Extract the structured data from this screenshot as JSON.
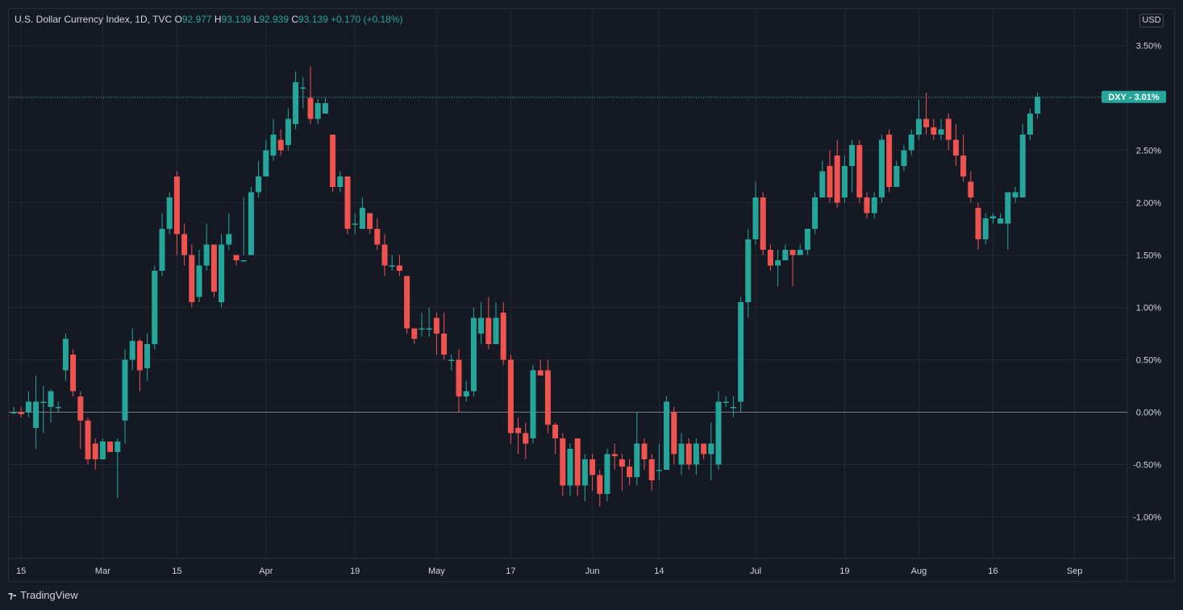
{
  "legend": {
    "title": "U.S. Dollar Currency Index, 1D, TVC",
    "o_label": "O",
    "o_value": "92.977",
    "h_label": "H",
    "h_value": "93.139",
    "l_label": "L",
    "l_value": "92.939",
    "c_label": "C",
    "c_value": "93.139",
    "change": "+0.170 (+0.18%)"
  },
  "currency_button": "USD",
  "price_tag": {
    "symbol": "DXY",
    "value": "3.01%"
  },
  "brand": "TradingView",
  "colors": {
    "up": "#26a69a",
    "down": "#ef5350",
    "grid": "#232733",
    "text": "#d1d4dc"
  },
  "chart_data": {
    "type": "candlestick",
    "ylim": [
      -1.35,
      3.55
    ],
    "y_ticks": [
      3.5,
      3.0,
      2.5,
      2.0,
      1.5,
      1.0,
      0.5,
      0.0,
      -0.5,
      -1.0
    ],
    "y_tick_labels": [
      "3.50%",
      "3.00%",
      "2.50%",
      "2.00%",
      "1.50%",
      "1.00%",
      "0.50%",
      "0.00%",
      "-0.50%",
      "-1.00%"
    ],
    "x_tick_labels": [
      {
        "label": "15",
        "index": 1
      },
      {
        "label": "Mar",
        "index": 12
      },
      {
        "label": "15",
        "index": 22
      },
      {
        "label": "Apr",
        "index": 34
      },
      {
        "label": "19",
        "index": 46
      },
      {
        "label": "May",
        "index": 57
      },
      {
        "label": "17",
        "index": 67
      },
      {
        "label": "Jun",
        "index": 78
      },
      {
        "label": "14",
        "index": 87
      },
      {
        "label": "Jul",
        "index": 100
      },
      {
        "label": "19",
        "index": 112
      },
      {
        "label": "Aug",
        "index": 122
      },
      {
        "label": "16",
        "index": 132
      },
      {
        "label": "Sep",
        "index": 143
      }
    ],
    "last_value": 3.01,
    "baseline": 0.0,
    "candles": [
      [
        0.0,
        0.0,
        0.05,
        -0.02
      ],
      [
        0.0,
        -0.02,
        0.05,
        -0.05
      ],
      [
        0.0,
        0.1,
        0.2,
        -0.05
      ],
      [
        -0.15,
        0.1,
        0.35,
        -0.35
      ],
      [
        0.1,
        0.1,
        0.25,
        -0.2
      ],
      [
        0.05,
        0.2,
        0.22,
        -0.1
      ],
      [
        0.05,
        0.05,
        0.1,
        0.0
      ],
      [
        0.4,
        0.7,
        0.75,
        0.3
      ],
      [
        0.55,
        0.2,
        0.6,
        0.15
      ],
      [
        0.15,
        -0.08,
        0.2,
        -0.35
      ],
      [
        -0.08,
        -0.45,
        -0.05,
        -0.5
      ],
      [
        -0.3,
        -0.45,
        -0.25,
        -0.55
      ],
      [
        -0.45,
        -0.28,
        -0.25,
        -0.45
      ],
      [
        -0.28,
        -0.38,
        -0.3,
        -0.35
      ],
      [
        -0.38,
        -0.28,
        -0.25,
        -0.82
      ],
      [
        -0.08,
        0.5,
        0.6,
        -0.3
      ],
      [
        0.5,
        0.68,
        0.8,
        0.4
      ],
      [
        0.68,
        0.4,
        0.7,
        0.2
      ],
      [
        0.42,
        0.65,
        0.75,
        0.3
      ],
      [
        0.65,
        1.35,
        1.4,
        0.6
      ],
      [
        1.35,
        1.75,
        1.9,
        1.3
      ],
      [
        1.75,
        2.05,
        2.1,
        1.7
      ],
      [
        2.25,
        1.7,
        2.3,
        1.5
      ],
      [
        1.7,
        1.5,
        1.8,
        1.4
      ],
      [
        1.5,
        1.05,
        1.6,
        1.0
      ],
      [
        1.1,
        1.4,
        1.55,
        1.05
      ],
      [
        1.4,
        1.6,
        1.8,
        1.35
      ],
      [
        1.6,
        1.15,
        1.6,
        1.1
      ],
      [
        1.05,
        1.6,
        1.7,
        1.0
      ],
      [
        1.6,
        1.7,
        1.9,
        1.55
      ],
      [
        1.5,
        1.45,
        1.5,
        1.4
      ],
      [
        1.45,
        1.45,
        2.05,
        1.5
      ],
      [
        1.5,
        2.1,
        2.15,
        1.5
      ],
      [
        2.1,
        2.25,
        2.4,
        2.05
      ],
      [
        2.25,
        2.5,
        2.6,
        2.25
      ],
      [
        2.45,
        2.65,
        2.8,
        2.4
      ],
      [
        2.6,
        2.5,
        2.7,
        2.45
      ],
      [
        2.55,
        2.8,
        2.9,
        2.5
      ],
      [
        2.75,
        3.15,
        3.25,
        2.7
      ],
      [
        3.1,
        3.1,
        3.2,
        2.9
      ],
      [
        3.0,
        2.8,
        3.3,
        2.75
      ],
      [
        2.8,
        2.95,
        2.99,
        2.75
      ],
      [
        2.85,
        2.95,
        3.0,
        2.85
      ],
      [
        2.65,
        2.15,
        2.65,
        2.1
      ],
      [
        2.15,
        2.25,
        2.3,
        2.1
      ],
      [
        2.25,
        1.75,
        2.25,
        1.7
      ],
      [
        1.8,
        1.8,
        1.9,
        1.7
      ],
      [
        1.75,
        1.95,
        2.05,
        1.8
      ],
      [
        1.9,
        1.75,
        1.9,
        1.7
      ],
      [
        1.75,
        1.6,
        1.85,
        1.55
      ],
      [
        1.6,
        1.4,
        1.7,
        1.3
      ],
      [
        1.4,
        1.4,
        1.5,
        1.35
      ],
      [
        1.4,
        1.35,
        1.5,
        1.3
      ],
      [
        1.3,
        0.8,
        1.3,
        0.75
      ],
      [
        0.8,
        0.7,
        0.8,
        0.65
      ],
      [
        0.8,
        0.8,
        0.95,
        0.72
      ],
      [
        0.8,
        0.8,
        1.0,
        0.72
      ],
      [
        0.9,
        0.75,
        0.95,
        0.55
      ],
      [
        0.75,
        0.55,
        0.95,
        0.5
      ],
      [
        0.5,
        0.5,
        0.55,
        0.4
      ],
      [
        0.5,
        0.15,
        0.6,
        0.0
      ],
      [
        0.15,
        0.2,
        0.3,
        0.1
      ],
      [
        0.2,
        0.9,
        1.0,
        0.15
      ],
      [
        0.75,
        0.9,
        1.05,
        0.65
      ],
      [
        0.9,
        0.65,
        1.1,
        0.6
      ],
      [
        0.65,
        0.9,
        1.05,
        0.65
      ],
      [
        0.95,
        0.5,
        1.05,
        0.45
      ],
      [
        0.5,
        -0.2,
        0.55,
        -0.3
      ],
      [
        -0.15,
        -0.2,
        -0.05,
        -0.4
      ],
      [
        -0.2,
        -0.3,
        -0.1,
        -0.45
      ],
      [
        -0.25,
        0.4,
        0.45,
        -0.3
      ],
      [
        0.4,
        0.35,
        0.5,
        0.35
      ],
      [
        0.4,
        -0.12,
        0.5,
        -0.2
      ],
      [
        -0.12,
        -0.25,
        -0.1,
        -0.4
      ],
      [
        -0.25,
        -0.7,
        -0.2,
        -0.8
      ],
      [
        -0.7,
        -0.35,
        -0.3,
        -0.8
      ],
      [
        -0.25,
        -0.7,
        -0.25,
        -0.8
      ],
      [
        -0.7,
        -0.45,
        -0.4,
        -0.85
      ],
      [
        -0.45,
        -0.6,
        -0.4,
        -0.75
      ],
      [
        -0.6,
        -0.78,
        -0.55,
        -0.9
      ],
      [
        -0.78,
        -0.4,
        -0.35,
        -0.85
      ],
      [
        -0.4,
        -0.42,
        -0.3,
        -0.55
      ],
      [
        -0.45,
        -0.52,
        -0.4,
        -0.75
      ],
      [
        -0.52,
        -0.62,
        -0.45,
        -0.7
      ],
      [
        -0.62,
        -0.3,
        0.0,
        -0.7
      ],
      [
        -0.3,
        -0.45,
        -0.25,
        -0.55
      ],
      [
        -0.45,
        -0.65,
        -0.4,
        -0.75
      ],
      [
        -0.55,
        -0.55,
        -0.3,
        -0.65
      ],
      [
        -0.55,
        0.1,
        0.15,
        -0.55
      ],
      [
        0.0,
        -0.4,
        0.05,
        -0.5
      ],
      [
        -0.5,
        -0.3,
        -0.2,
        -0.6
      ],
      [
        -0.3,
        -0.5,
        -0.25,
        -0.55
      ],
      [
        -0.5,
        -0.3,
        -0.25,
        -0.6
      ],
      [
        -0.3,
        -0.4,
        -0.3,
        -0.45
      ],
      [
        -0.4,
        -0.3,
        -0.1,
        -0.65
      ],
      [
        -0.5,
        0.1,
        0.2,
        -0.55
      ],
      [
        0.1,
        0.1,
        0.15,
        0.05
      ],
      [
        0.05,
        0.05,
        0.15,
        -0.05
      ],
      [
        0.1,
        1.05,
        1.1,
        0.0
      ],
      [
        1.05,
        1.65,
        1.75,
        0.9
      ],
      [
        1.65,
        2.05,
        2.2,
        1.6
      ],
      [
        2.05,
        1.55,
        2.1,
        1.5
      ],
      [
        1.55,
        1.4,
        1.6,
        1.35
      ],
      [
        1.4,
        1.45,
        1.55,
        1.2
      ],
      [
        1.45,
        1.55,
        1.6,
        1.45
      ],
      [
        1.55,
        1.5,
        1.55,
        1.2
      ],
      [
        1.5,
        1.55,
        1.6,
        1.5
      ],
      [
        1.55,
        1.75,
        1.75,
        1.5
      ],
      [
        1.75,
        2.05,
        2.1,
        1.7
      ],
      [
        2.05,
        2.3,
        2.4,
        2.05
      ],
      [
        2.35,
        2.05,
        2.5,
        2.0
      ],
      [
        2.45,
        2.0,
        2.6,
        1.95
      ],
      [
        2.05,
        2.35,
        2.45,
        2.0
      ],
      [
        2.35,
        2.55,
        2.6,
        2.1
      ],
      [
        2.55,
        2.05,
        2.6,
        2.0
      ],
      [
        2.05,
        1.9,
        2.1,
        1.85
      ],
      [
        1.9,
        2.05,
        2.1,
        1.85
      ],
      [
        2.05,
        2.6,
        2.65,
        2.0
      ],
      [
        2.65,
        2.15,
        2.7,
        2.1
      ],
      [
        2.15,
        2.35,
        2.4,
        2.15
      ],
      [
        2.35,
        2.5,
        2.55,
        2.3
      ],
      [
        2.5,
        2.65,
        2.7,
        2.45
      ],
      [
        2.65,
        2.8,
        2.98,
        2.6
      ],
      [
        2.8,
        2.72,
        3.05,
        2.65
      ],
      [
        2.72,
        2.65,
        2.8,
        2.6
      ],
      [
        2.65,
        2.7,
        2.8,
        2.6
      ],
      [
        2.8,
        2.6,
        2.85,
        2.5
      ],
      [
        2.6,
        2.45,
        2.75,
        2.35
      ],
      [
        2.45,
        2.25,
        2.65,
        2.2
      ],
      [
        2.2,
        2.05,
        2.3,
        2.0
      ],
      [
        1.95,
        1.65,
        2.0,
        1.55
      ],
      [
        1.65,
        1.85,
        1.9,
        1.6
      ],
      [
        1.85,
        1.87,
        1.9,
        1.8
      ],
      [
        1.8,
        1.85,
        1.9,
        1.8
      ],
      [
        1.8,
        2.1,
        2.1,
        1.55
      ],
      [
        2.05,
        2.1,
        2.15,
        2.0
      ],
      [
        2.05,
        2.65,
        2.75,
        2.05
      ],
      [
        2.65,
        2.85,
        2.9,
        2.6
      ],
      [
        2.85,
        3.01,
        3.05,
        2.8
      ]
    ]
  }
}
